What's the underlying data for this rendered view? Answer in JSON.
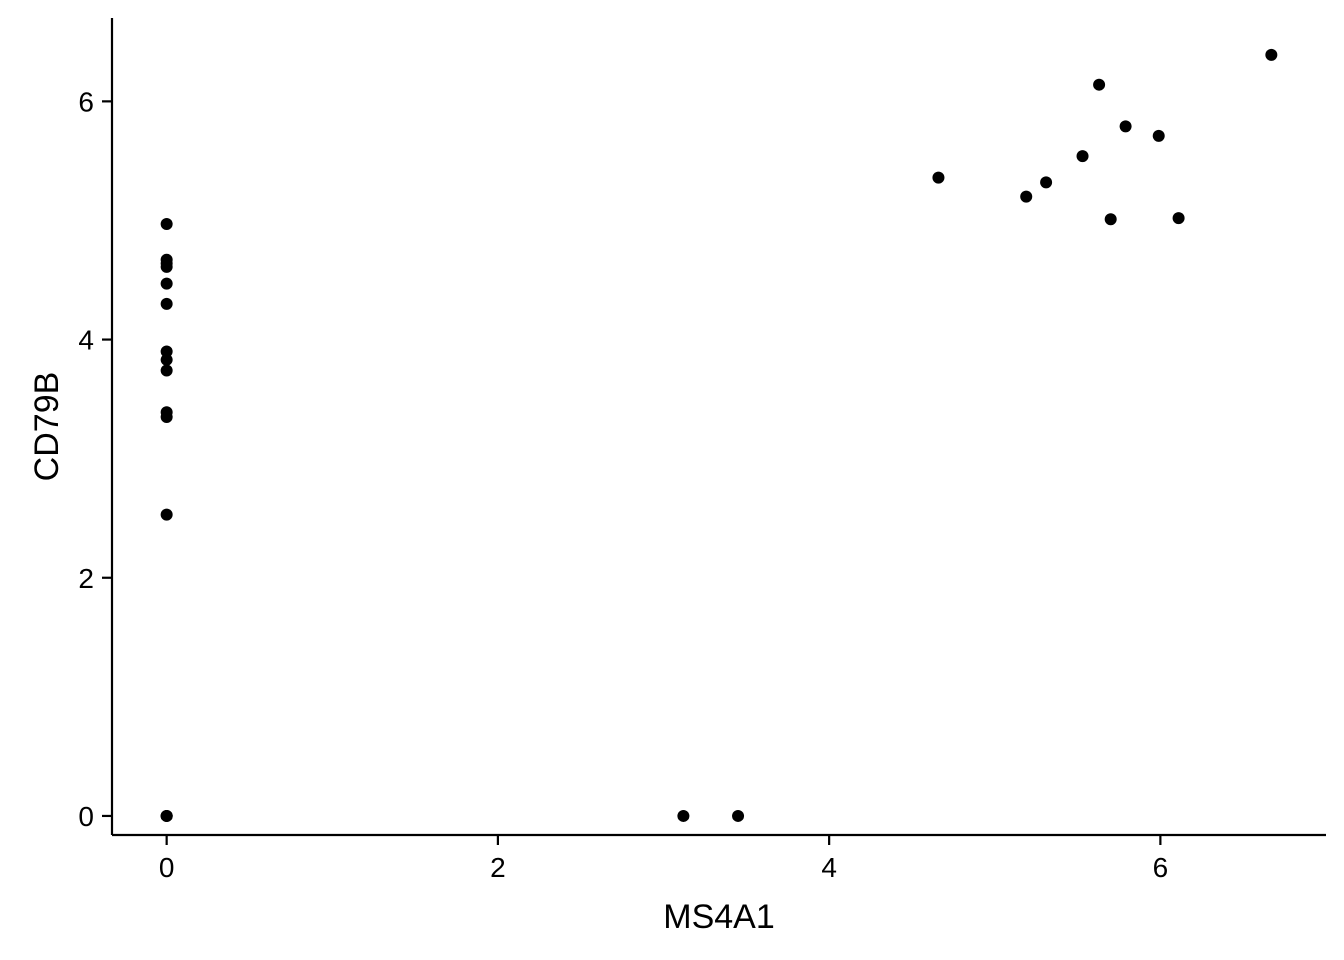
{
  "chart_data": {
    "type": "scatter",
    "title": "",
    "xlabel": "MS4A1",
    "ylabel": "CD79B",
    "xlim": [
      -0.33,
      7.0
    ],
    "ylim": [
      -0.16,
      6.7
    ],
    "xticks": [
      0,
      2,
      4,
      6
    ],
    "xtick_labels": [
      "0",
      "2",
      "4",
      "6"
    ],
    "yticks": [
      0,
      2,
      4,
      6
    ],
    "ytick_labels": [
      "0",
      "2",
      "4",
      "6"
    ],
    "grid": false,
    "legend": "none",
    "point_color": "#000000",
    "points": [
      {
        "x": 0,
        "y": 4.97
      },
      {
        "x": 0,
        "y": 4.67
      },
      {
        "x": 0,
        "y": 4.64
      },
      {
        "x": 0,
        "y": 4.61
      },
      {
        "x": 0,
        "y": 4.47
      },
      {
        "x": 0,
        "y": 4.3
      },
      {
        "x": 0,
        "y": 3.9
      },
      {
        "x": 0,
        "y": 3.83
      },
      {
        "x": 0,
        "y": 3.74
      },
      {
        "x": 0,
        "y": 3.39
      },
      {
        "x": 0,
        "y": 3.35
      },
      {
        "x": 0,
        "y": 2.53
      },
      {
        "x": 0,
        "y": 0
      },
      {
        "x": 0,
        "y": 0
      },
      {
        "x": 0,
        "y": 0
      },
      {
        "x": 3.12,
        "y": 0
      },
      {
        "x": 3.45,
        "y": 0
      },
      {
        "x": 4.66,
        "y": 5.36
      },
      {
        "x": 5.19,
        "y": 5.2
      },
      {
        "x": 5.31,
        "y": 5.32
      },
      {
        "x": 5.53,
        "y": 5.54
      },
      {
        "x": 5.63,
        "y": 6.14
      },
      {
        "x": 5.7,
        "y": 5.01
      },
      {
        "x": 5.79,
        "y": 5.79
      },
      {
        "x": 5.99,
        "y": 5.71
      },
      {
        "x": 6.11,
        "y": 5.02
      },
      {
        "x": 6.67,
        "y": 6.39
      }
    ]
  }
}
